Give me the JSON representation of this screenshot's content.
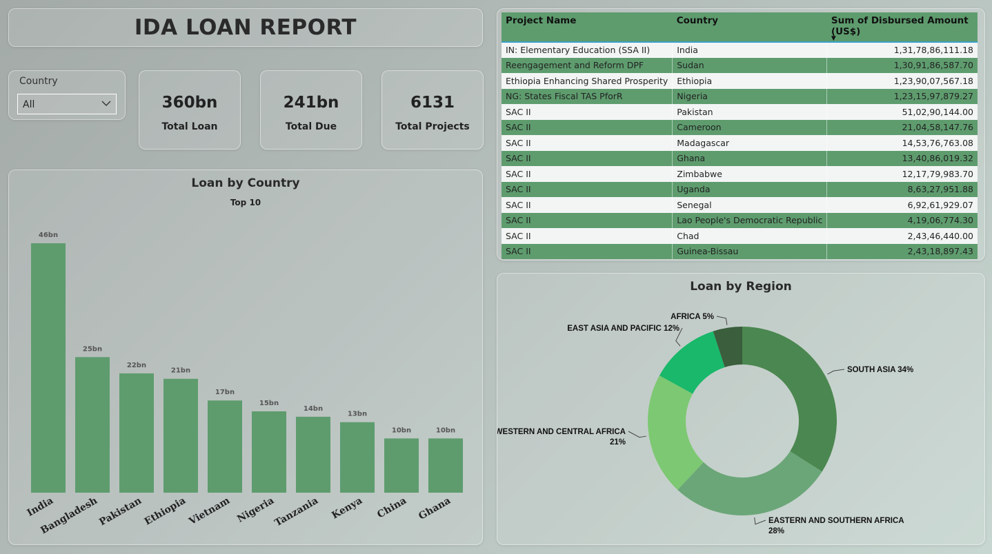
{
  "report_title": "IDA LOAN REPORT",
  "slicer": {
    "label": "Country",
    "value": "All"
  },
  "kpis": [
    {
      "value": "360bn",
      "label": "Total Loan"
    },
    {
      "value": "241bn",
      "label": "Total Due"
    },
    {
      "value": "6131",
      "label": "Total Projects"
    }
  ],
  "table": {
    "columns": [
      "Project Name",
      "Country",
      "Sum of Disbursed Amount (US$)"
    ],
    "rows": [
      [
        "IN: Elementary Education (SSA II)",
        "India",
        "1,31,78,86,111.18"
      ],
      [
        "Reengagement and Reform DPF",
        "Sudan",
        "1,30,91,86,587.70"
      ],
      [
        "Ethiopia Enhancing Shared Prosperity",
        "Ethiopia",
        "1,23,90,07,567.18"
      ],
      [
        "NG: States Fiscal TAS PforR",
        "Nigeria",
        "1,23,15,97,879.27"
      ],
      [
        "SAC II",
        "Pakistan",
        "51,02,90,144.00"
      ],
      [
        "SAC II",
        "Cameroon",
        "21,04,58,147.76"
      ],
      [
        "SAC II",
        "Madagascar",
        "14,53,76,763.08"
      ],
      [
        "SAC II",
        "Ghana",
        "13,40,86,019.32"
      ],
      [
        "SAC II",
        "Zimbabwe",
        "12,17,79,983.70"
      ],
      [
        "SAC II",
        "Uganda",
        "8,63,27,951.88"
      ],
      [
        "SAC II",
        "Senegal",
        "6,92,61,929.07"
      ],
      [
        "SAC II",
        "Lao People's Democratic Republic",
        "4,19,06,774.30"
      ],
      [
        "SAC II",
        "Chad",
        "2,43,46,440.00"
      ],
      [
        "SAC II",
        "Guinea-Bissau",
        "2,43,18,897.43"
      ]
    ]
  },
  "chart_data": [
    {
      "type": "bar",
      "title": "Loan by Country",
      "subtitle": "Top 10",
      "categories": [
        "India",
        "Bangladesh",
        "Pakistan",
        "Ethiopia",
        "Vietnam",
        "Nigeria",
        "Tanzania",
        "Kenya",
        "China",
        "Ghana"
      ],
      "values": [
        46,
        25,
        22,
        21,
        17,
        15,
        14,
        13,
        10,
        10
      ],
      "data_labels": [
        "46bn",
        "25bn",
        "22bn",
        "21bn",
        "17bn",
        "15bn",
        "14bn",
        "13bn",
        "10bn",
        "10bn"
      ],
      "unit": "bn",
      "ylim": [
        0,
        46
      ],
      "grid": false,
      "color": "#5e9c6e"
    },
    {
      "type": "pie",
      "title": "Loan by Region",
      "donut": true,
      "slices": [
        {
          "label": "SOUTH ASIA",
          "value": 34,
          "color": "#4b8750"
        },
        {
          "label": "EASTERN AND SOUTHERN AFRICA",
          "value": 28,
          "color": "#6ba678"
        },
        {
          "label": "WESTERN AND CENTRAL AFRICA",
          "value": 21,
          "color": "#7dc872"
        },
        {
          "label": "EAST ASIA AND PACIFIC",
          "value": 12,
          "color": "#19b86a"
        },
        {
          "label": "AFRICA",
          "value": 5,
          "color": "#3b5e3c"
        }
      ],
      "slice_labels": [
        "SOUTH ASIA 34%",
        "EASTERN AND SOUTHERN AFRICA 28%",
        "WESTERN AND CENTRAL AFRICA 21%",
        "EAST ASIA AND PACIFIC 12%",
        "AFRICA 5%"
      ]
    }
  ]
}
